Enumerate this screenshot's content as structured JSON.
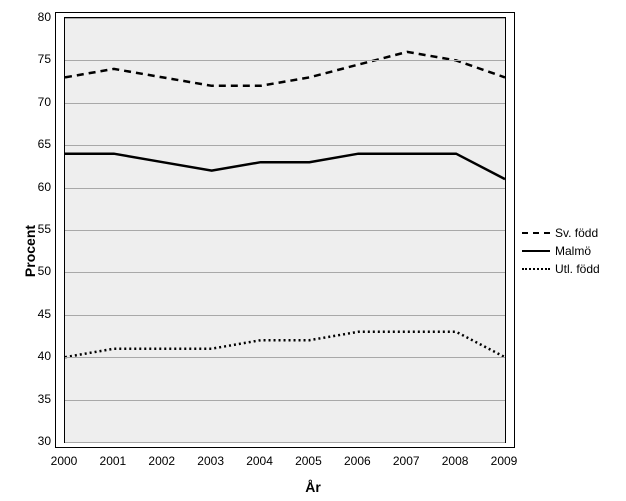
{
  "chart": {
    "type": "line",
    "ylabel": "Procent",
    "xlabel": "År",
    "label_fontsize": 14,
    "tick_fontsize": 12,
    "background_color": "#eeeeee",
    "grid_color": "#a8a8a8",
    "border_color": "#000000",
    "ylim": [
      30,
      80
    ],
    "ytick_step": 5,
    "yticks": [
      30,
      35,
      40,
      45,
      50,
      55,
      60,
      65,
      70,
      75,
      80
    ],
    "x_categories": [
      "2000",
      "2001",
      "2002",
      "2003",
      "2004",
      "2005",
      "2006",
      "2007",
      "2008",
      "2009"
    ],
    "series": [
      {
        "name": "Sv. född",
        "color": "#000000",
        "line_width": 2.5,
        "dash": "7,5",
        "values": [
          73.0,
          74.0,
          73.0,
          72.0,
          72.0,
          73.0,
          74.5,
          76.0,
          75.0,
          73.0
        ]
      },
      {
        "name": "Malmö",
        "color": "#000000",
        "line_width": 2.5,
        "dash": "",
        "values": [
          64.0,
          64.0,
          63.0,
          62.0,
          63.0,
          63.0,
          64.0,
          64.0,
          64.0,
          61.0
        ]
      },
      {
        "name": "Utl. född",
        "color": "#000000",
        "line_width": 2.5,
        "dash": "2,3",
        "values": [
          40.0,
          41.0,
          41.0,
          41.0,
          42.0,
          42.0,
          43.0,
          43.0,
          43.0,
          40.0
        ]
      }
    ],
    "legend_position": "right"
  }
}
